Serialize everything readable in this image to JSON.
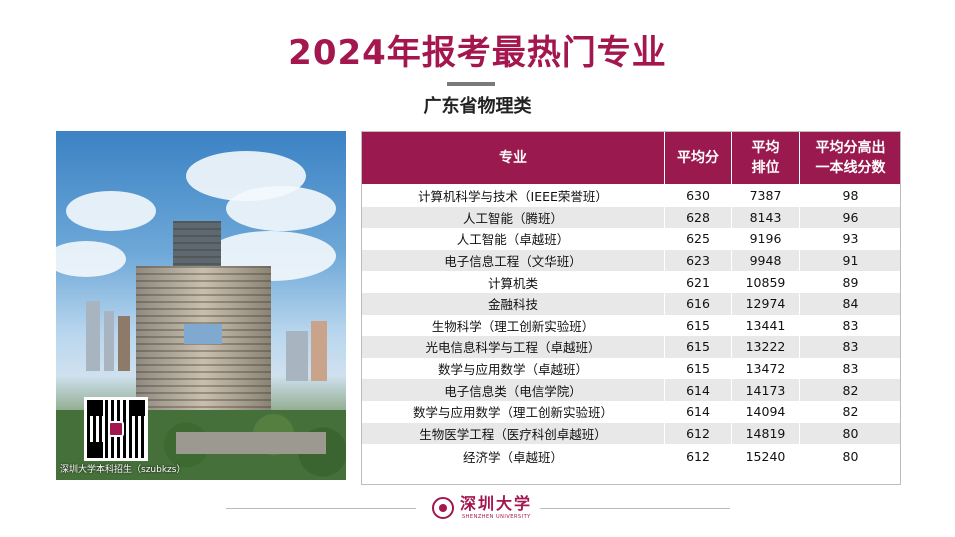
{
  "header": {
    "title": "2024年报考最热门专业",
    "subtitle": "广东省物理类"
  },
  "photo": {
    "qr_caption": "深圳大学本科招生（szubkzs）"
  },
  "table": {
    "columns": [
      "专业",
      "平均分",
      "平均\n排位",
      "平均分高出\n一本线分数"
    ],
    "rows": [
      [
        "计算机科学与技术（IEEE荣誉班）",
        "630",
        "7387",
        "98"
      ],
      [
        "人工智能（腾班）",
        "628",
        "8143",
        "96"
      ],
      [
        "人工智能（卓越班）",
        "625",
        "9196",
        "93"
      ],
      [
        "电子信息工程（文华班）",
        "623",
        "9948",
        "91"
      ],
      [
        "计算机类",
        "621",
        "10859",
        "89"
      ],
      [
        "金融科技",
        "616",
        "12974",
        "84"
      ],
      [
        "生物科学（理工创新实验班）",
        "615",
        "13441",
        "83"
      ],
      [
        "光电信息科学与工程（卓越班）",
        "615",
        "13222",
        "83"
      ],
      [
        "数学与应用数学（卓越班）",
        "615",
        "13472",
        "83"
      ],
      [
        "电子信息类（电信学院）",
        "614",
        "14173",
        "82"
      ],
      [
        "数学与应用数学（理工创新实验班）",
        "614",
        "14094",
        "82"
      ],
      [
        "生物医学工程（医疗科创卓越班）",
        "612",
        "14819",
        "80"
      ],
      [
        "经济学（卓越班）",
        "612",
        "15240",
        "80"
      ]
    ]
  },
  "footer": {
    "logo_name": "深圳大学",
    "logo_en": "SHENZHEN UNIVERSITY"
  },
  "colors": {
    "brand": "#a3164e",
    "header_bg": "#9a1a4f",
    "stripe": "#e8e8e8"
  }
}
